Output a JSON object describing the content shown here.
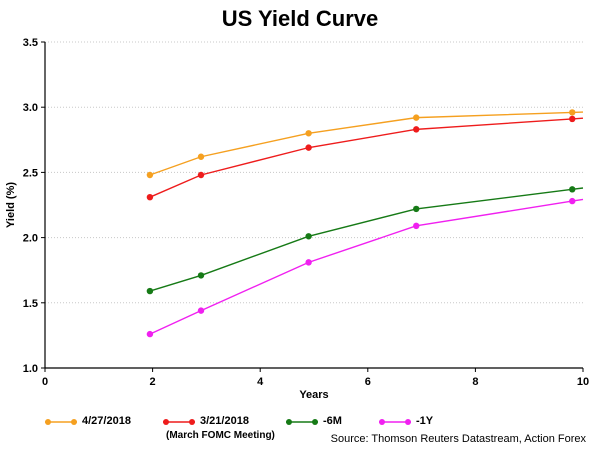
{
  "chart_data": {
    "type": "line",
    "title": "US Yield Curve",
    "xlabel": "Years",
    "ylabel": "Yield (%)",
    "xlim": [
      0,
      10
    ],
    "ylim": [
      1.0,
      3.5
    ],
    "xticks": [
      0,
      2,
      4,
      6,
      8,
      10
    ],
    "yticks": [
      1.0,
      1.5,
      2.0,
      2.5,
      3.0,
      3.5
    ],
    "xtick_labels": [
      "0",
      "2",
      "4",
      "6",
      "8",
      "10"
    ],
    "ytick_labels": [
      "1.0",
      "1.5",
      "2.0",
      "2.5",
      "3.0",
      "3.5"
    ],
    "grid": true,
    "legend_position": "bottom",
    "x": [
      1.95,
      2.9,
      4.9,
      6.9,
      9.8
    ],
    "series": [
      {
        "name": "4/27/2018",
        "color": "#f5a020",
        "values": [
          2.48,
          2.62,
          2.8,
          2.92,
          2.96
        ]
      },
      {
        "name": "3/21/2018",
        "color": "#ee1c1c",
        "values": [
          2.31,
          2.48,
          2.69,
          2.83,
          2.91
        ]
      },
      {
        "name": "-6M",
        "color": "#167a16",
        "values": [
          1.59,
          1.71,
          2.01,
          2.22,
          2.37
        ]
      },
      {
        "name": "-1Y",
        "color": "#f020f0",
        "values": [
          1.26,
          1.44,
          1.81,
          2.09,
          2.28
        ]
      }
    ],
    "legend_notes": {
      "3/21/2018": "(March FOMC Meeting)"
    },
    "source": "Source: Thomson Reuters Datastream, Action Forex"
  }
}
